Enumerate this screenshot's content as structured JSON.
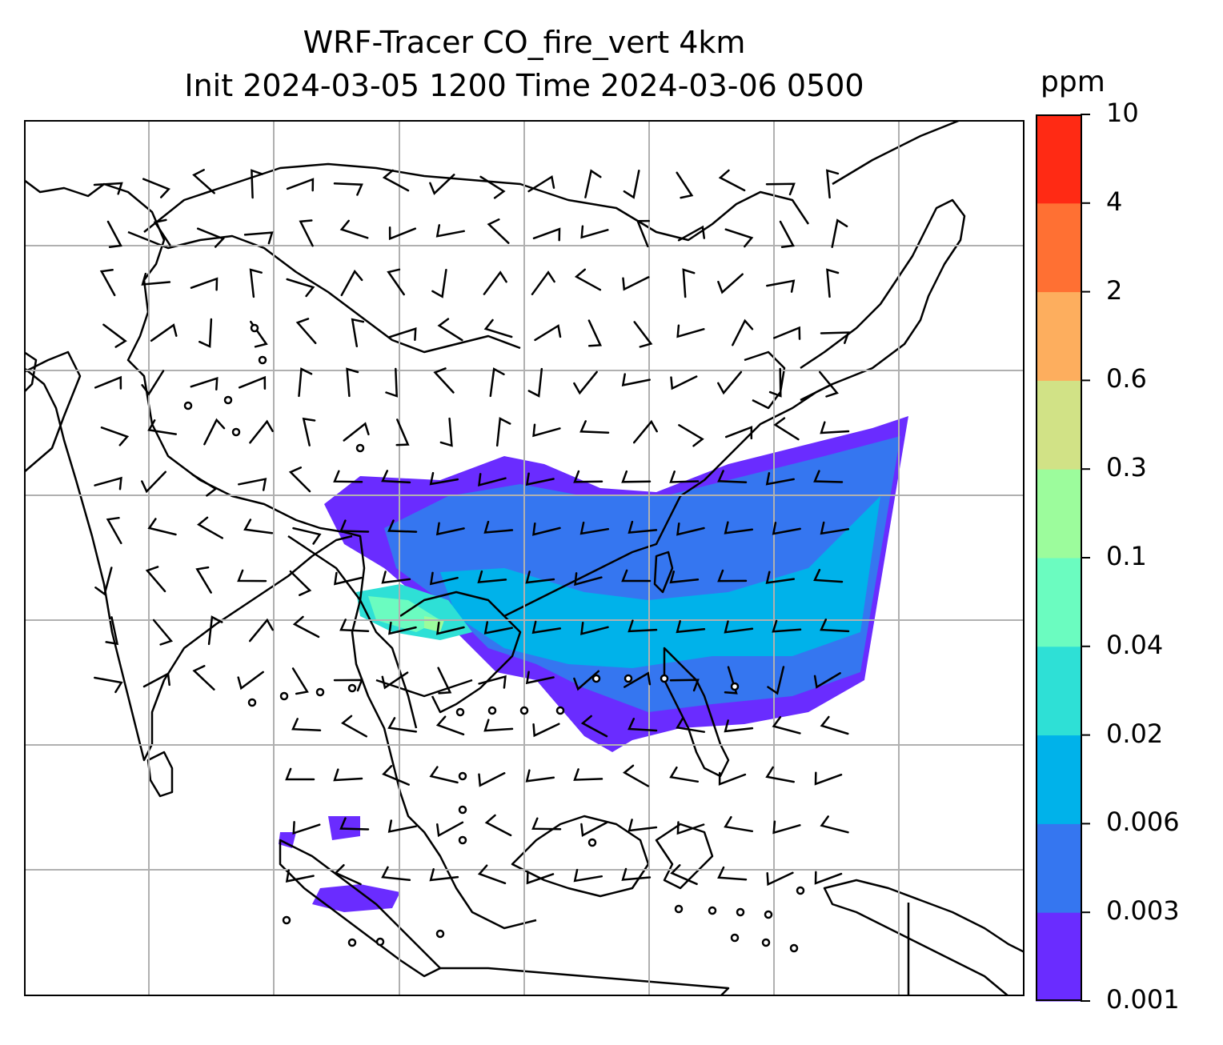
{
  "title": {
    "line1": "WRF-Tracer CO_fire_vert 4km",
    "line2": "Init 2024-03-05 1200 Time 2024-03-06 0500"
  },
  "colorbar": {
    "unit": "ppm",
    "levels": [
      "0.001",
      "0.003",
      "0.006",
      "0.02",
      "0.04",
      "0.1",
      "0.3",
      "0.6",
      "2",
      "4",
      "10"
    ],
    "colors": [
      "#6a2cff",
      "#3576f0",
      "#00b2ea",
      "#2ee0d6",
      "#6bfcc0",
      "#9cfc9c",
      "#d1e286",
      "#fdae5e",
      "#ff7033",
      "#ff2a14"
    ]
  },
  "map": {
    "gridlines": true,
    "gridline_color": "#b0b0b0",
    "coastline_color": "#000000",
    "wind_barb_color": "#000000"
  }
}
